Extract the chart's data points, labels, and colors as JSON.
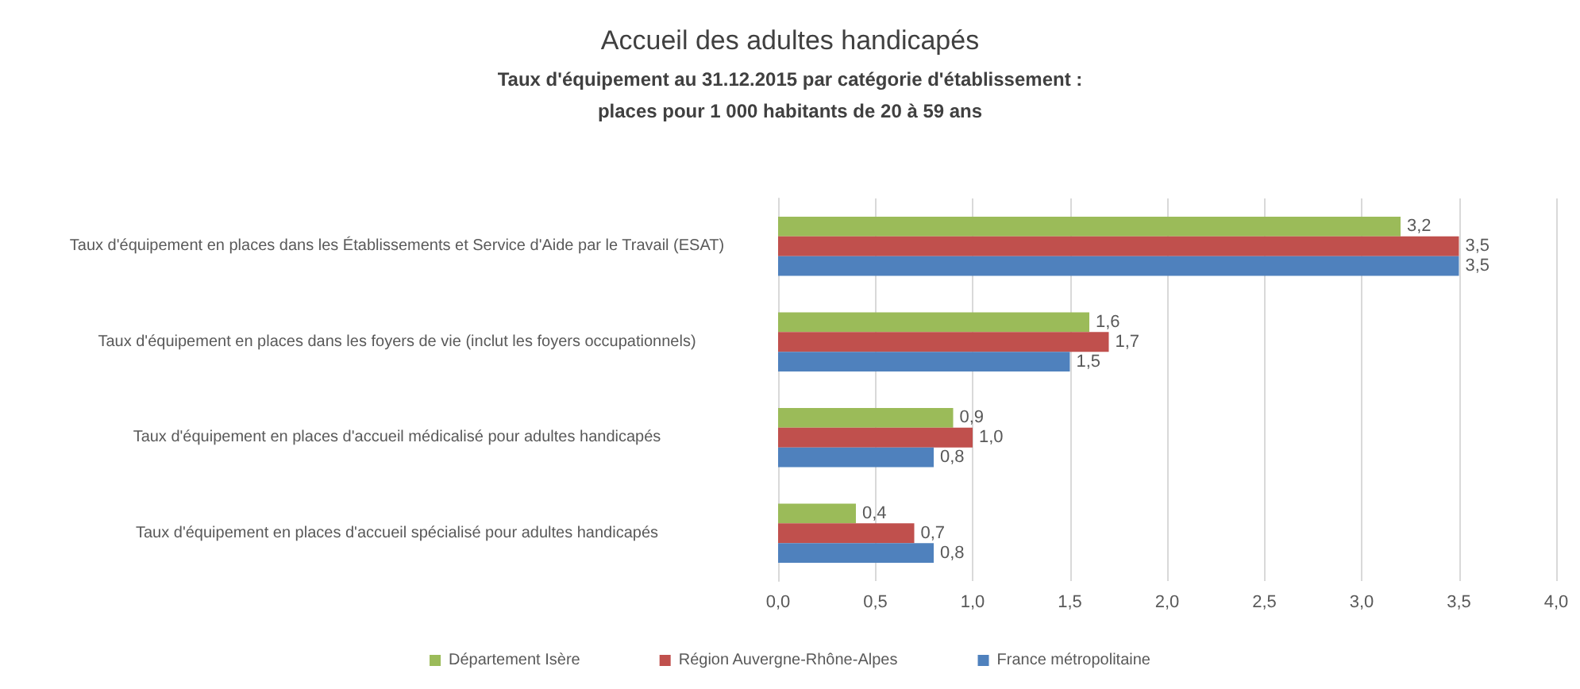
{
  "chart_data": {
    "type": "bar",
    "orientation": "horizontal",
    "title": "Accueil des adultes handicapés",
    "subtitle": "Taux d'équipement au 31.12.2015 par catégorie d'établissement :\nplaces pour 1 000 habitants de 20 à 59 ans",
    "categories": [
      "Taux d'équipement en places dans les Établissements et Service d'Aide par le Travail (ESAT)",
      "Taux d'équipement en places dans les foyers de vie (inclut les foyers occupationnels)",
      "Taux d'équipement en places d'accueil médicalisé pour adultes handicapés",
      "Taux d'équipement en places d'accueil spécialisé pour adultes handicapés"
    ],
    "series": [
      {
        "name": "Département Isère",
        "color": "#9bbb59",
        "values": [
          3.2,
          1.6,
          0.9,
          0.4
        ],
        "value_labels": [
          "3,2",
          "1,6",
          "0,9",
          "0,4"
        ]
      },
      {
        "name": "Région Auvergne-Rhône-Alpes",
        "color": "#c0504d",
        "values": [
          3.5,
          1.7,
          1.0,
          0.7
        ],
        "value_labels": [
          "3,5",
          "1,7",
          "1,0",
          "0,7"
        ]
      },
      {
        "name": "France métropolitaine",
        "color": "#4f81bd",
        "values": [
          3.5,
          1.5,
          0.8,
          0.8
        ],
        "value_labels": [
          "3,5",
          "1,5",
          "0,8",
          "0,8"
        ]
      }
    ],
    "xlim": [
      0,
      4
    ],
    "xticks": [
      {
        "value": 0,
        "label": "0,0"
      },
      {
        "value": 0.5,
        "label": "0,5"
      },
      {
        "value": 1,
        "label": "1,0"
      },
      {
        "value": 1.5,
        "label": "1,5"
      },
      {
        "value": 2,
        "label": "2,0"
      },
      {
        "value": 2.5,
        "label": "2,5"
      },
      {
        "value": 3,
        "label": "3,0"
      },
      {
        "value": 3.5,
        "label": "3,5"
      },
      {
        "value": 4,
        "label": "4,0"
      }
    ],
    "grid": "x",
    "legend": "bottom"
  }
}
